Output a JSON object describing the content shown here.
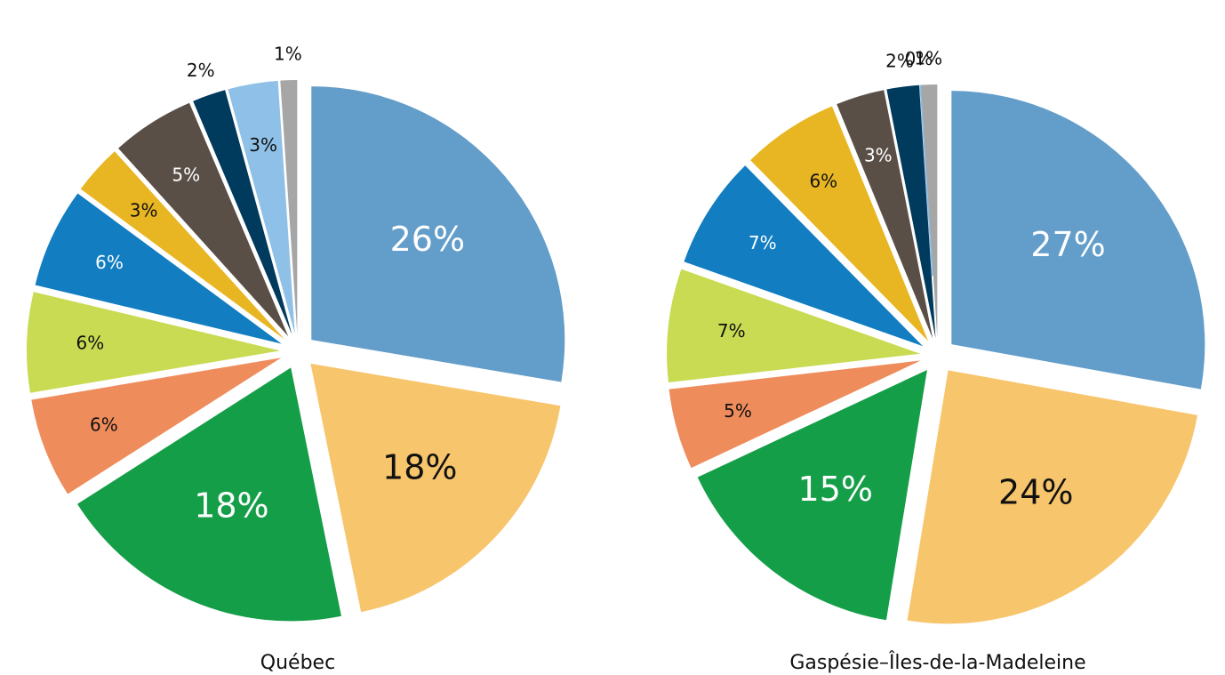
{
  "chart_data": [
    {
      "type": "pie",
      "title": "Québec",
      "values": [
        26,
        18,
        18,
        6,
        6,
        6,
        3,
        5,
        2,
        3,
        1
      ],
      "value_labels": [
        "26%",
        "18%",
        "18%",
        "6%",
        "6%",
        "6%",
        "3%",
        "5%",
        "2%",
        "3%",
        "1%"
      ],
      "colors": [
        "#639dc9",
        "#f7c56c",
        "#159e48",
        "#ef8c5c",
        "#c8db52",
        "#127dc1",
        "#e8b623",
        "#5a4f47",
        "#003a5c",
        "#8fc1e8",
        "#a6a6a6"
      ]
    },
    {
      "type": "pie",
      "title": "Gaspésie–Îles-de-la-Madeleine",
      "values": [
        27,
        24,
        15,
        5,
        7,
        7,
        6,
        3,
        2,
        0,
        1
      ],
      "value_labels": [
        "27%",
        "24%",
        "15%",
        "5%",
        "7%",
        "7%",
        "6%",
        "3%",
        "2%",
        "0%",
        "1%"
      ],
      "colors": [
        "#639dc9",
        "#f7c56c",
        "#159e48",
        "#ef8c5c",
        "#c8db52",
        "#127dc1",
        "#e8b623",
        "#5a4f47",
        "#003a5c",
        "#8fc1e8",
        "#a6a6a6"
      ]
    }
  ]
}
